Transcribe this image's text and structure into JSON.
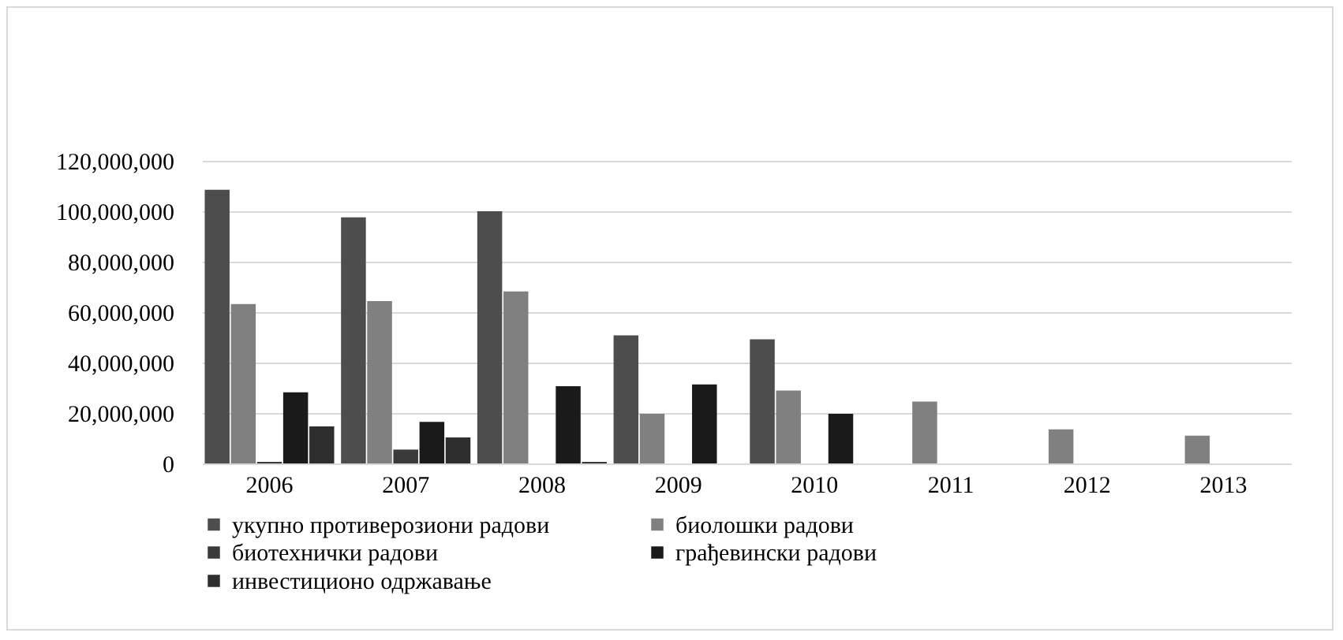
{
  "chart_data": {
    "type": "bar",
    "categories": [
      "2006",
      "2007",
      "2008",
      "2009",
      "2010",
      "2011",
      "2012",
      "2013"
    ],
    "series": [
      {
        "name": "укупно противерозиони радови",
        "color": "#4d4d4d",
        "values": [
          108500000,
          97600000,
          100000000,
          50800000,
          49200000,
          null,
          null,
          null
        ]
      },
      {
        "name": "биолошки радови",
        "color": "#808080",
        "values": [
          63200000,
          64400000,
          68200000,
          19700000,
          28900000,
          24500000,
          13500000,
          11000000
        ]
      },
      {
        "name": "биотехнички радови",
        "color": "#3a3a3a",
        "values": [
          600000,
          5500000,
          null,
          null,
          null,
          null,
          null,
          null
        ]
      },
      {
        "name": "грађевински радови",
        "color": "#1a1a1a",
        "values": [
          28200000,
          16500000,
          30600000,
          31300000,
          19700000,
          null,
          null,
          null
        ]
      },
      {
        "name": "инвестиционо одржавање",
        "color": "#2e2e2e",
        "values": [
          14700000,
          10300000,
          600000,
          null,
          null,
          null,
          null,
          null
        ]
      }
    ],
    "ylim": [
      0,
      120000000
    ],
    "yticks": [
      0,
      {
        "value": 20000000,
        "label": "20,000,000"
      },
      {
        "value": 40000000,
        "label": "40,000,000"
      },
      {
        "value": 60000000,
        "label": "60,000,000"
      },
      {
        "value": 80000000,
        "label": "80,000,000"
      },
      {
        "value": 100000000,
        "label": "100,000,000"
      },
      {
        "value": 120000000,
        "label": "120,000,000"
      }
    ],
    "grid": "y",
    "legend": "bottom"
  }
}
